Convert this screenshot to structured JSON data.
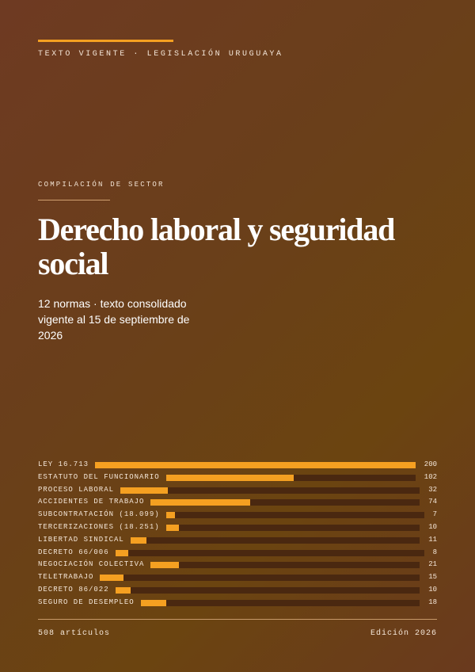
{
  "header": {
    "tag": "TEXTO VIGENTE · LEGISLACIÓN URUGUAYA"
  },
  "kicker": "COMPILACIÓN DE SECTOR",
  "title": "Derecho laboral y seguridad social",
  "subtitle": "12 normas · texto consolidado vigente al 15 de septiembre de 2026",
  "colors": {
    "accent": "#f5a021",
    "track": "#4a2810",
    "background": "#6b3f1c"
  },
  "chart_data": {
    "type": "bar",
    "orientation": "horizontal",
    "categories": [
      "LEY 16.713",
      "ESTATUTO DEL FUNCIONARIO",
      "PROCESO LABORAL",
      "ACCIDENTES DE TRABAJO",
      "SUBCONTRATACIÓN (18.099)",
      "TERCERIZACIONES (18.251)",
      "LIBERTAD SINDICAL",
      "DECRETO 66/006",
      "NEGOCIACIÓN COLECTIVA",
      "TELETRABAJO",
      "DECRETO 86/022",
      "SEGURO DE DESEMPLEO"
    ],
    "values": [
      200,
      102,
      32,
      74,
      7,
      10,
      11,
      8,
      21,
      15,
      10,
      18
    ],
    "max": 200,
    "title": "",
    "xlabel": "",
    "ylabel": "",
    "legend": "none"
  },
  "footer": {
    "articles": "508 artículos",
    "edition": "Edición 2026"
  }
}
